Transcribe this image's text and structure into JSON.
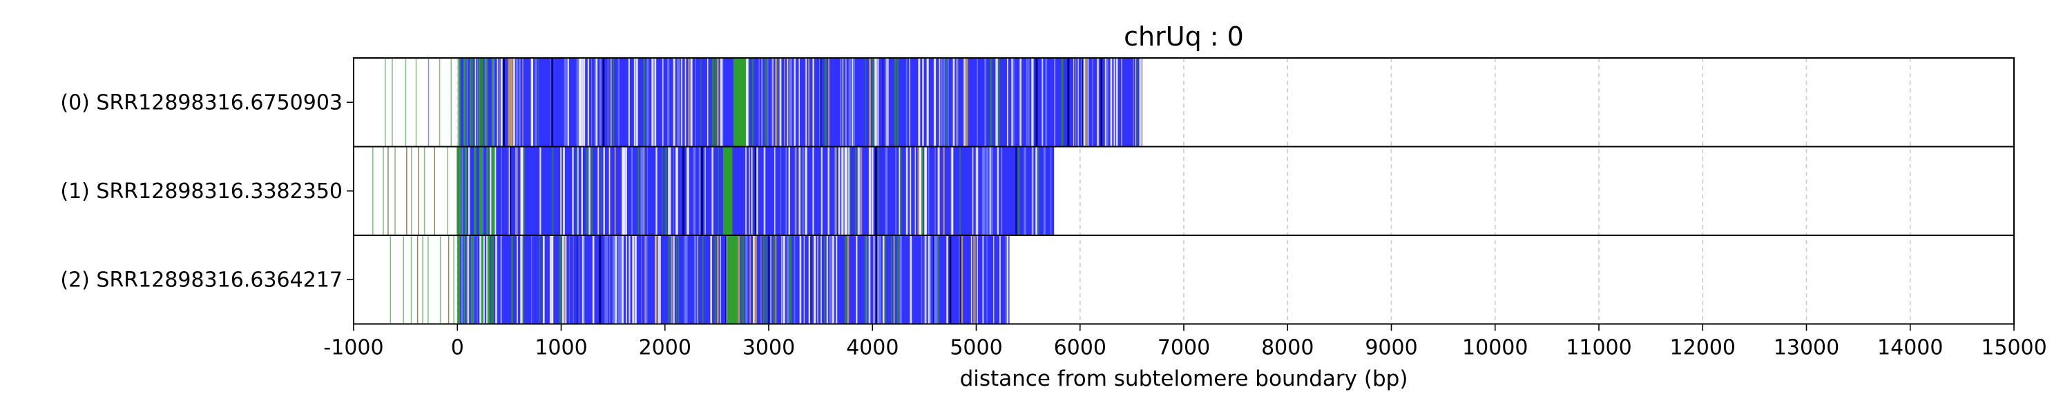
{
  "chart_data": {
    "type": "bar",
    "title": "chrUq : 0",
    "xlabel": "distance from subtelomere boundary (bp)",
    "ylabel": "",
    "xlim": [
      -1000,
      15000
    ],
    "xticks": [
      -1000,
      0,
      1000,
      2000,
      3000,
      4000,
      5000,
      6000,
      7000,
      8000,
      9000,
      10000,
      11000,
      12000,
      13000,
      14000,
      15000
    ],
    "xtick_labels": [
      "-1000",
      "0",
      "1000",
      "2000",
      "3000",
      "4000",
      "5000",
      "6000",
      "7000",
      "8000",
      "9000",
      "10000",
      "11000",
      "12000",
      "13000",
      "14000",
      "15000"
    ],
    "grid": "vertical dashed",
    "rows": [
      {
        "label": "(0) SRR12898316.6750903",
        "read_start": -700,
        "read_end": 6600,
        "green_blocks": [
          [
            10,
            30
          ],
          [
            60,
            80
          ],
          [
            120,
            135
          ],
          [
            205,
            220
          ],
          [
            275,
            290
          ],
          [
            330,
            345
          ],
          [
            2660,
            2780
          ]
        ],
        "dense_start": 0
      },
      {
        "label": "(1) SRR12898316.3382350",
        "read_start": -820,
        "read_end": 5750,
        "green_blocks": [
          [
            10,
            35
          ],
          [
            70,
            90
          ],
          [
            160,
            175
          ],
          [
            210,
            240
          ],
          [
            280,
            300
          ],
          [
            330,
            360
          ],
          [
            2560,
            2650
          ]
        ],
        "dense_start": 0
      },
      {
        "label": "(2) SRR12898316.6364217",
        "read_start": -650,
        "read_end": 5320,
        "green_blocks": [
          [
            0,
            25
          ],
          [
            60,
            75
          ],
          [
            130,
            150
          ],
          [
            230,
            250
          ],
          [
            290,
            315
          ],
          [
            2600,
            2700
          ]
        ],
        "dense_start": 0
      }
    ],
    "colors": {
      "blue": "#3333ff",
      "green": "#2e9e2e",
      "sparse_green": "#7fbf7f",
      "grid": "#cccccc",
      "frame": "#000000"
    }
  }
}
